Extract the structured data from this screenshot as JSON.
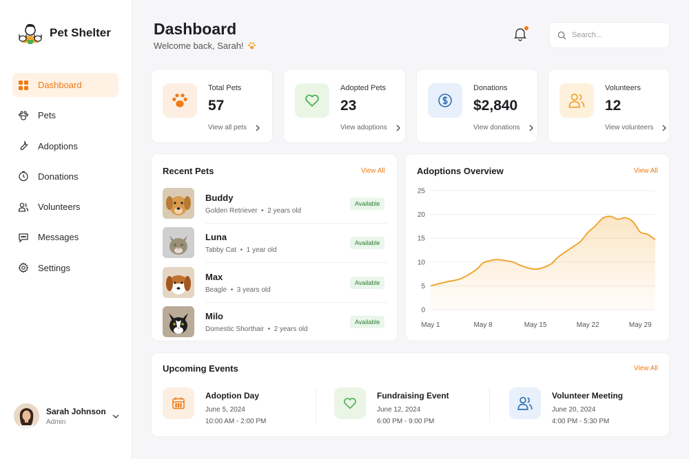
{
  "app": {
    "name": "Pet Shelter"
  },
  "sidebar": {
    "items": [
      {
        "label": "Dashboard",
        "icon": "grid-icon",
        "active": true
      },
      {
        "label": "Pets",
        "icon": "paw-icon"
      },
      {
        "label": "Adoptions",
        "icon": "wrench-icon"
      },
      {
        "label": "Donations",
        "icon": "clock-icon"
      },
      {
        "label": "Volunteers",
        "icon": "users-icon"
      },
      {
        "label": "Messages",
        "icon": "message-icon"
      },
      {
        "label": "Settings",
        "icon": "gear-icon"
      }
    ],
    "user": {
      "name": "Sarah Johnson",
      "role": "Admin"
    }
  },
  "header": {
    "title": "Dashboard",
    "subtitle": "Welcome back, Sarah!",
    "search_placeholder": "Search..."
  },
  "stats": [
    {
      "label": "Total Pets",
      "value": "57",
      "link": "View all pets",
      "icon": "paw-icon",
      "color": "#f07a13",
      "bg": "#fdeee2"
    },
    {
      "label": "Adopted Pets",
      "value": "23",
      "link": "View adoptions",
      "icon": "heart-icon",
      "color": "#4caf50",
      "bg": "#eaf5e6"
    },
    {
      "label": "Donations",
      "value": "$2,840",
      "link": "View donations",
      "icon": "dollar-icon",
      "color": "#2f6fb3",
      "bg": "#e7f0fb"
    },
    {
      "label": "Volunteers",
      "value": "12",
      "link": "View volunteers",
      "icon": "users-icon",
      "color": "#f0a531",
      "bg": "#fdf1dc"
    }
  ],
  "recent_pets": {
    "title": "Recent Pets",
    "view_all": "View All",
    "pets": [
      {
        "name": "Buddy",
        "breed": "Golden Retriever",
        "age": "2 years old",
        "status": "Available"
      },
      {
        "name": "Luna",
        "breed": "Tabby Cat",
        "age": "1 year old",
        "status": "Available"
      },
      {
        "name": "Max",
        "breed": "Beagle",
        "age": "3 years old",
        "status": "Available"
      },
      {
        "name": "Milo",
        "breed": "Domestic Shorthair",
        "age": "2 years old",
        "status": "Available"
      }
    ]
  },
  "overview": {
    "title": "Adoptions Overview",
    "view_all": "View All"
  },
  "chart_data": {
    "type": "area",
    "title": "Adoptions Overview",
    "xlabel": "",
    "ylabel": "",
    "ylim": [
      0,
      25
    ],
    "yticks": [
      0,
      5,
      10,
      15,
      20,
      25
    ],
    "xtick_labels": [
      "May 1",
      "May 8",
      "May 15",
      "May 22",
      "May 29"
    ],
    "x": [
      1,
      3,
      5,
      7,
      8,
      9,
      10,
      12,
      13,
      15,
      17,
      18,
      20,
      21,
      22,
      23,
      24,
      25,
      26,
      27,
      28,
      29,
      30,
      31
    ],
    "values": [
      5,
      5.8,
      6.5,
      8.3,
      9.8,
      10.3,
      10.5,
      10,
      9.3,
      8.5,
      9.5,
      11,
      13.2,
      14.3,
      16.2,
      17.6,
      19.2,
      19.6,
      19,
      19.3,
      18.5,
      16.3,
      15.8,
      14.7
    ],
    "color": "#f0a531",
    "grid": true
  },
  "events": {
    "title": "Upcoming Events",
    "view_all": "View All",
    "items": [
      {
        "title": "Adoption Day",
        "date": "June 5, 2024",
        "time": "10:00 AM - 2:00 PM",
        "icon": "calendar-icon",
        "color": "#f07a13",
        "bg": "#fdeee2"
      },
      {
        "title": "Fundraising Event",
        "date": "June 12, 2024",
        "time": "6:00 PM - 9:00 PM",
        "icon": "heart-icon",
        "color": "#4caf50",
        "bg": "#eaf5e6"
      },
      {
        "title": "Volunteer Meeting",
        "date": "June 20, 2024",
        "time": "4:00 PM - 5:30 PM",
        "icon": "users-icon",
        "color": "#2f6fb3",
        "bg": "#e7f0fb"
      }
    ]
  }
}
